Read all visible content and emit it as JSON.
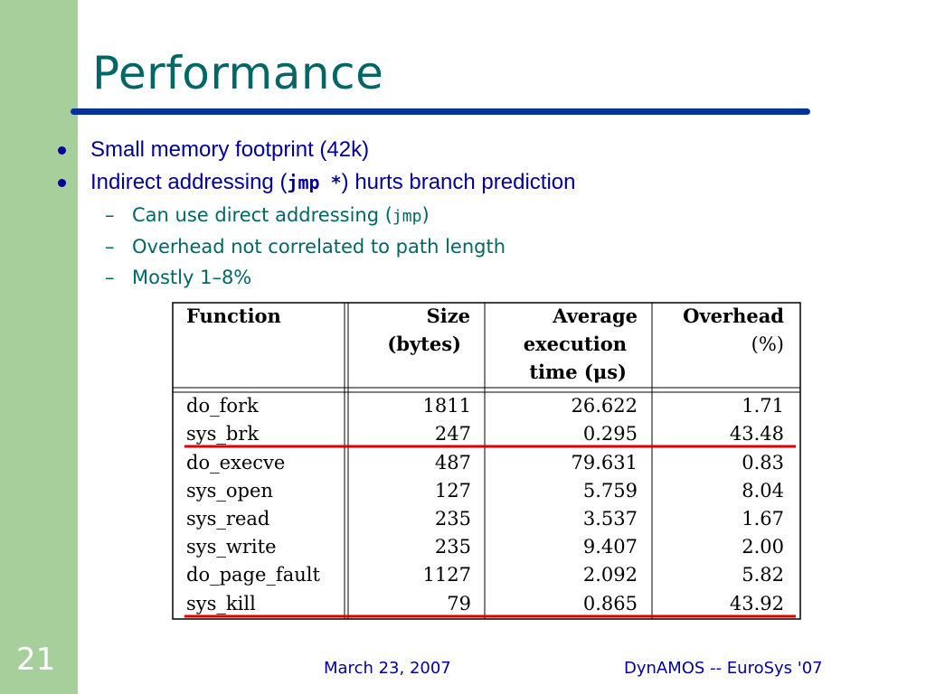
{
  "slide": {
    "number": "21",
    "title": "Performance"
  },
  "bullets": [
    {
      "pre": "Small memory footprint (42k)"
    },
    {
      "pre": "Indirect addressing (",
      "code": "jmp *",
      "post": ") hurts branch prediction"
    }
  ],
  "subbullets": [
    {
      "dash": "–",
      "pre": "Can use direct addressing (",
      "code": "jmp",
      "post": ")"
    },
    {
      "dash": "–",
      "pre": "Overhead not correlated to path length"
    },
    {
      "dash": "–",
      "pre": "Mostly 1–8%"
    }
  ],
  "table": {
    "headers": {
      "function": "Function",
      "size_1": "Size",
      "size_2": "(bytes)",
      "avg_1": "Average",
      "avg_2": "execution",
      "avg_3": "time (μs)",
      "over_1": "Overhead",
      "over_2": "(%)"
    },
    "rows": [
      {
        "function": "do_fork",
        "size": "1811",
        "avg": "26.622",
        "overhead": "1.71"
      },
      {
        "function": "sys_brk",
        "size": "247",
        "avg": "0.295",
        "overhead": "43.48"
      },
      {
        "function": "do_execve",
        "size": "487",
        "avg": "79.631",
        "overhead": "0.83"
      },
      {
        "function": "sys_open",
        "size": "127",
        "avg": "5.759",
        "overhead": "8.04"
      },
      {
        "function": "sys_read",
        "size": "235",
        "avg": "3.537",
        "overhead": "1.67"
      },
      {
        "function": "sys_write",
        "size": "235",
        "avg": "9.407",
        "overhead": "2.00"
      },
      {
        "function": "do_page_fault",
        "size": "1127",
        "avg": "2.092",
        "overhead": "5.82"
      },
      {
        "function": "sys_kill",
        "size": "79",
        "avg": "0.865",
        "overhead": "43.92"
      }
    ],
    "highlight_color": "#e00000"
  },
  "footer": {
    "date": "March 23, 2007",
    "event": "DynAMOS -- EuroSys '07"
  },
  "colors": {
    "sidebar": "#a6cf9b",
    "title": "#006666",
    "rule": "#003399",
    "bullet": "#000099"
  }
}
